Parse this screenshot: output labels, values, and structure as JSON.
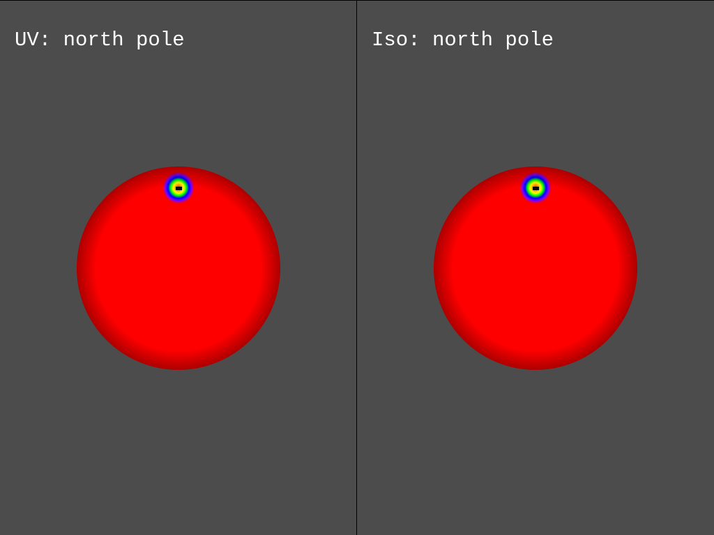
{
  "viewports": [
    {
      "label": "UV: north pole",
      "mesh": "uv-sphere"
    },
    {
      "label": "Iso: north pole",
      "mesh": "iso-sphere"
    }
  ],
  "colors": {
    "background": "#4c4c4c",
    "divider": "#000000",
    "label_text": "#ffffff",
    "stripe_palette": [
      "#ff0000",
      "#ffa000",
      "#ffff00",
      "#00ff00",
      "#0000ff",
      "#8000ff"
    ]
  }
}
